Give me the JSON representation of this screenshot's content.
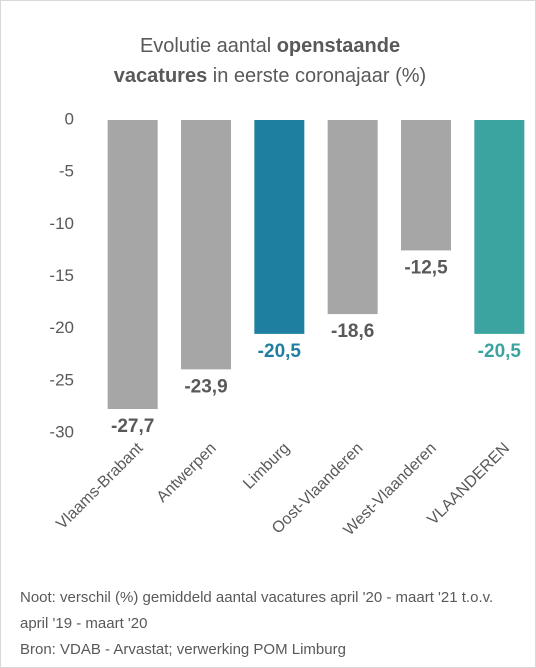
{
  "chart_data": {
    "type": "bar",
    "title_lines": [
      [
        {
          "text": "Evolutie aantal ",
          "bold": false
        },
        {
          "text": "openstaande",
          "bold": true
        }
      ],
      [
        {
          "text": "vacatures",
          "bold": true
        },
        {
          "text": " in eerste coronajaar (%)",
          "bold": false
        }
      ]
    ],
    "categories": [
      "Vlaams-Brabant",
      "Antwerpen",
      "Limburg",
      "Oost-Vlaanderen",
      "West-Vlaanderen",
      "VLAANDEREN"
    ],
    "values": [
      -27.7,
      -23.9,
      -20.5,
      -18.6,
      -12.5,
      -20.5
    ],
    "value_labels": [
      "-27,7",
      "-23,9",
      "-20,5",
      "-18,6",
      "-12,5",
      "-20,5"
    ],
    "colors": [
      "#a6a6a6",
      "#a6a6a6",
      "#1f7fa0",
      "#a6a6a6",
      "#a6a6a6",
      "#3ba3a0"
    ],
    "label_colors": [
      "#595959",
      "#595959",
      "#1f7fa0",
      "#595959",
      "#595959",
      "#3ba3a0"
    ],
    "ylim": [
      -30,
      0
    ],
    "yticks": [
      0,
      -5,
      -10,
      -15,
      -20,
      -25,
      -30
    ],
    "grid": false,
    "notes": [
      "Noot: verschil (%) gemiddeld aantal vacatures april '20 - maart '21 t.o.v. april '19 - maart '20",
      "Bron: VDAB - Arvastat; verwerking POM Limburg"
    ]
  }
}
